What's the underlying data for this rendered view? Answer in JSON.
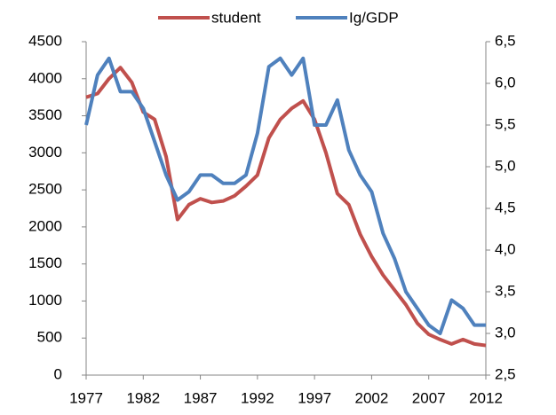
{
  "chart_data": {
    "type": "line",
    "x": [
      1977,
      1978,
      1979,
      1980,
      1981,
      1982,
      1983,
      1984,
      1985,
      1986,
      1987,
      1988,
      1989,
      1990,
      1991,
      1992,
      1993,
      1994,
      1995,
      1996,
      1997,
      1998,
      1999,
      2000,
      2001,
      2002,
      2003,
      2004,
      2005,
      2006,
      2007,
      2008,
      2009,
      2010,
      2011,
      2012
    ],
    "xlim": [
      1977,
      2012
    ],
    "xticks": [
      1977,
      1982,
      1987,
      1992,
      1997,
      2002,
      2007,
      2012
    ],
    "ylim": [
      0,
      4500
    ],
    "yticks": [
      0,
      500,
      1000,
      1500,
      2000,
      2500,
      3000,
      3500,
      4000,
      4500
    ],
    "y2lim": [
      2.5,
      6.5
    ],
    "y2ticks": [
      {
        "value": 2.5,
        "label": "2,5"
      },
      {
        "value": 3.0,
        "label": "3,0"
      },
      {
        "value": 3.5,
        "label": "3,5"
      },
      {
        "value": 4.0,
        "label": "4,0"
      },
      {
        "value": 4.5,
        "label": "4,5"
      },
      {
        "value": 5.0,
        "label": "5,0"
      },
      {
        "value": 5.5,
        "label": "5,5"
      },
      {
        "value": 6.0,
        "label": "6,0"
      },
      {
        "value": 6.5,
        "label": "6,5"
      }
    ],
    "legend": "top",
    "series": [
      {
        "name": "student",
        "color": "#c0504d",
        "values": [
          3750,
          3800,
          4000,
          4150,
          3950,
          3550,
          3450,
          2950,
          2100,
          2300,
          2380,
          2330,
          2350,
          2420,
          2550,
          2700,
          3200,
          3450,
          3600,
          3700,
          3450,
          3000,
          2450,
          2300,
          1900,
          1600,
          1350,
          1150,
          950,
          700,
          550,
          480,
          420,
          480,
          420,
          400
        ]
      },
      {
        "name": "Ig/GDP",
        "color": "#4f81bd",
        "axis": "y2",
        "values": [
          5.5,
          6.1,
          6.3,
          5.9,
          5.9,
          5.7,
          5.3,
          4.9,
          4.6,
          4.7,
          4.9,
          4.9,
          4.8,
          4.8,
          4.9,
          5.4,
          6.2,
          6.3,
          6.1,
          6.3,
          5.5,
          5.5,
          5.8,
          5.2,
          4.9,
          4.7,
          4.2,
          3.9,
          3.5,
          3.3,
          3.1,
          3.0,
          3.4,
          3.3,
          3.1,
          3.1
        ]
      }
    ]
  }
}
